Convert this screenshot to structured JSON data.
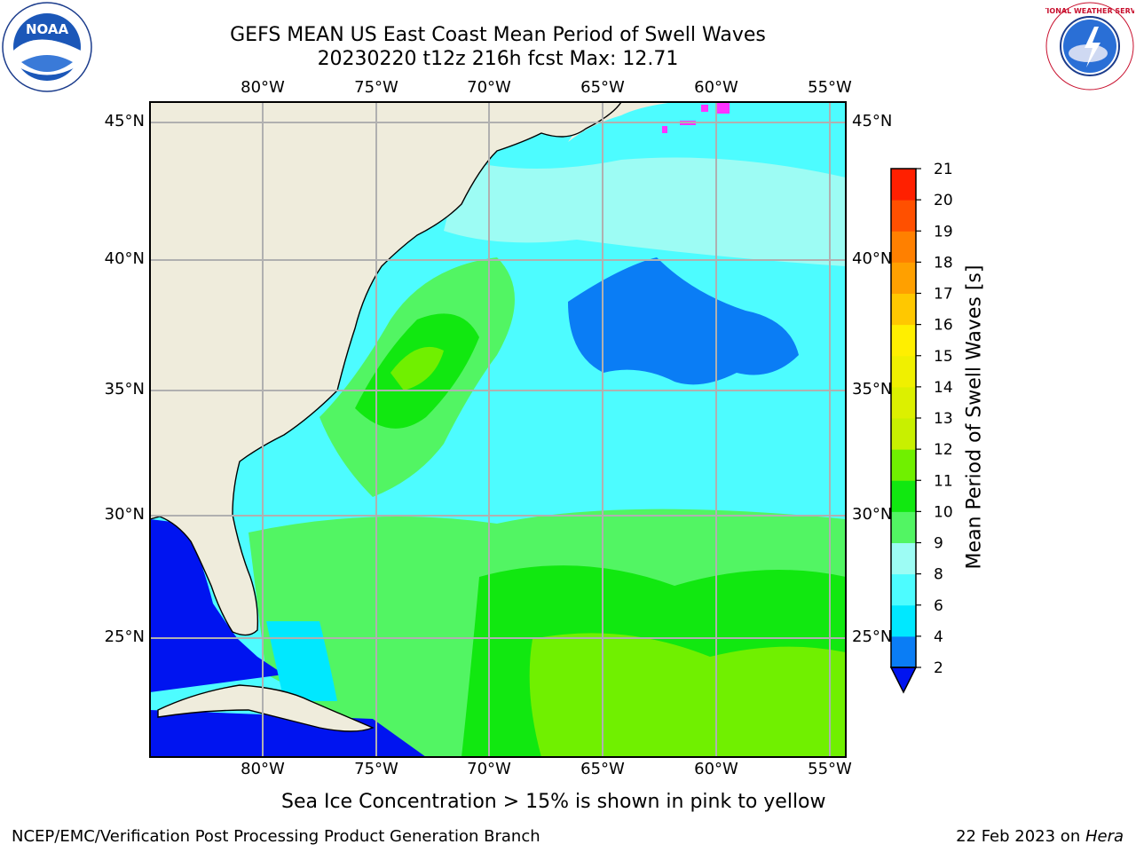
{
  "header": {
    "title_line1": "GEFS MEAN US East Coast Mean Period of Swell Waves",
    "title_line2": "20230220 t12z 216h fcst   Max: 12.71"
  },
  "logos": {
    "left": "NOAA",
    "right": "NATIONAL WEATHER SERVICE"
  },
  "map": {
    "lon_ticks": [
      "80°W",
      "75°W",
      "70°W",
      "65°W",
      "60°W",
      "55°W"
    ],
    "lat_ticks": [
      "45°N",
      "40°N",
      "35°N",
      "30°N",
      "25°N"
    ],
    "colors": {
      "land": "#efecdc",
      "period_2_4": "#0a7df5",
      "period_4_6": "#00e8ff",
      "period_6_8": "#4dfcff",
      "period_8_9": "#9dfcf4",
      "period_9_10": "#52f563",
      "period_10_11": "#11e810",
      "period_11_12": "#70f000",
      "period_12_13": "#c8f000",
      "below_2": "#0014f0",
      "sea_ice": "#ff33ff"
    }
  },
  "colorbar": {
    "label": "Mean Period of Swell Waves [s]",
    "ticks": [
      "2",
      "4",
      "6",
      "8",
      "9",
      "10",
      "11",
      "12",
      "13",
      "14",
      "15",
      "16",
      "17",
      "18",
      "19",
      "20",
      "21"
    ],
    "colors": [
      "#0a7df5",
      "#00e8ff",
      "#4dfcff",
      "#9dfcf4",
      "#52f563",
      "#11e810",
      "#70f000",
      "#c8f000",
      "#dcf000",
      "#f0f000",
      "#ffef00",
      "#ffc800",
      "#ffa000",
      "#ff8000",
      "#ff5000",
      "#ff2000"
    ],
    "extend_color": "#0014f0"
  },
  "notes": {
    "sea_ice": "Sea Ice Concentration > 15% is shown in pink to yellow"
  },
  "footer": {
    "left": "NCEP/EMC/Verification Post Processing Product Generation Branch",
    "right_date": "22 Feb 2023 on ",
    "right_host": "Hera"
  }
}
